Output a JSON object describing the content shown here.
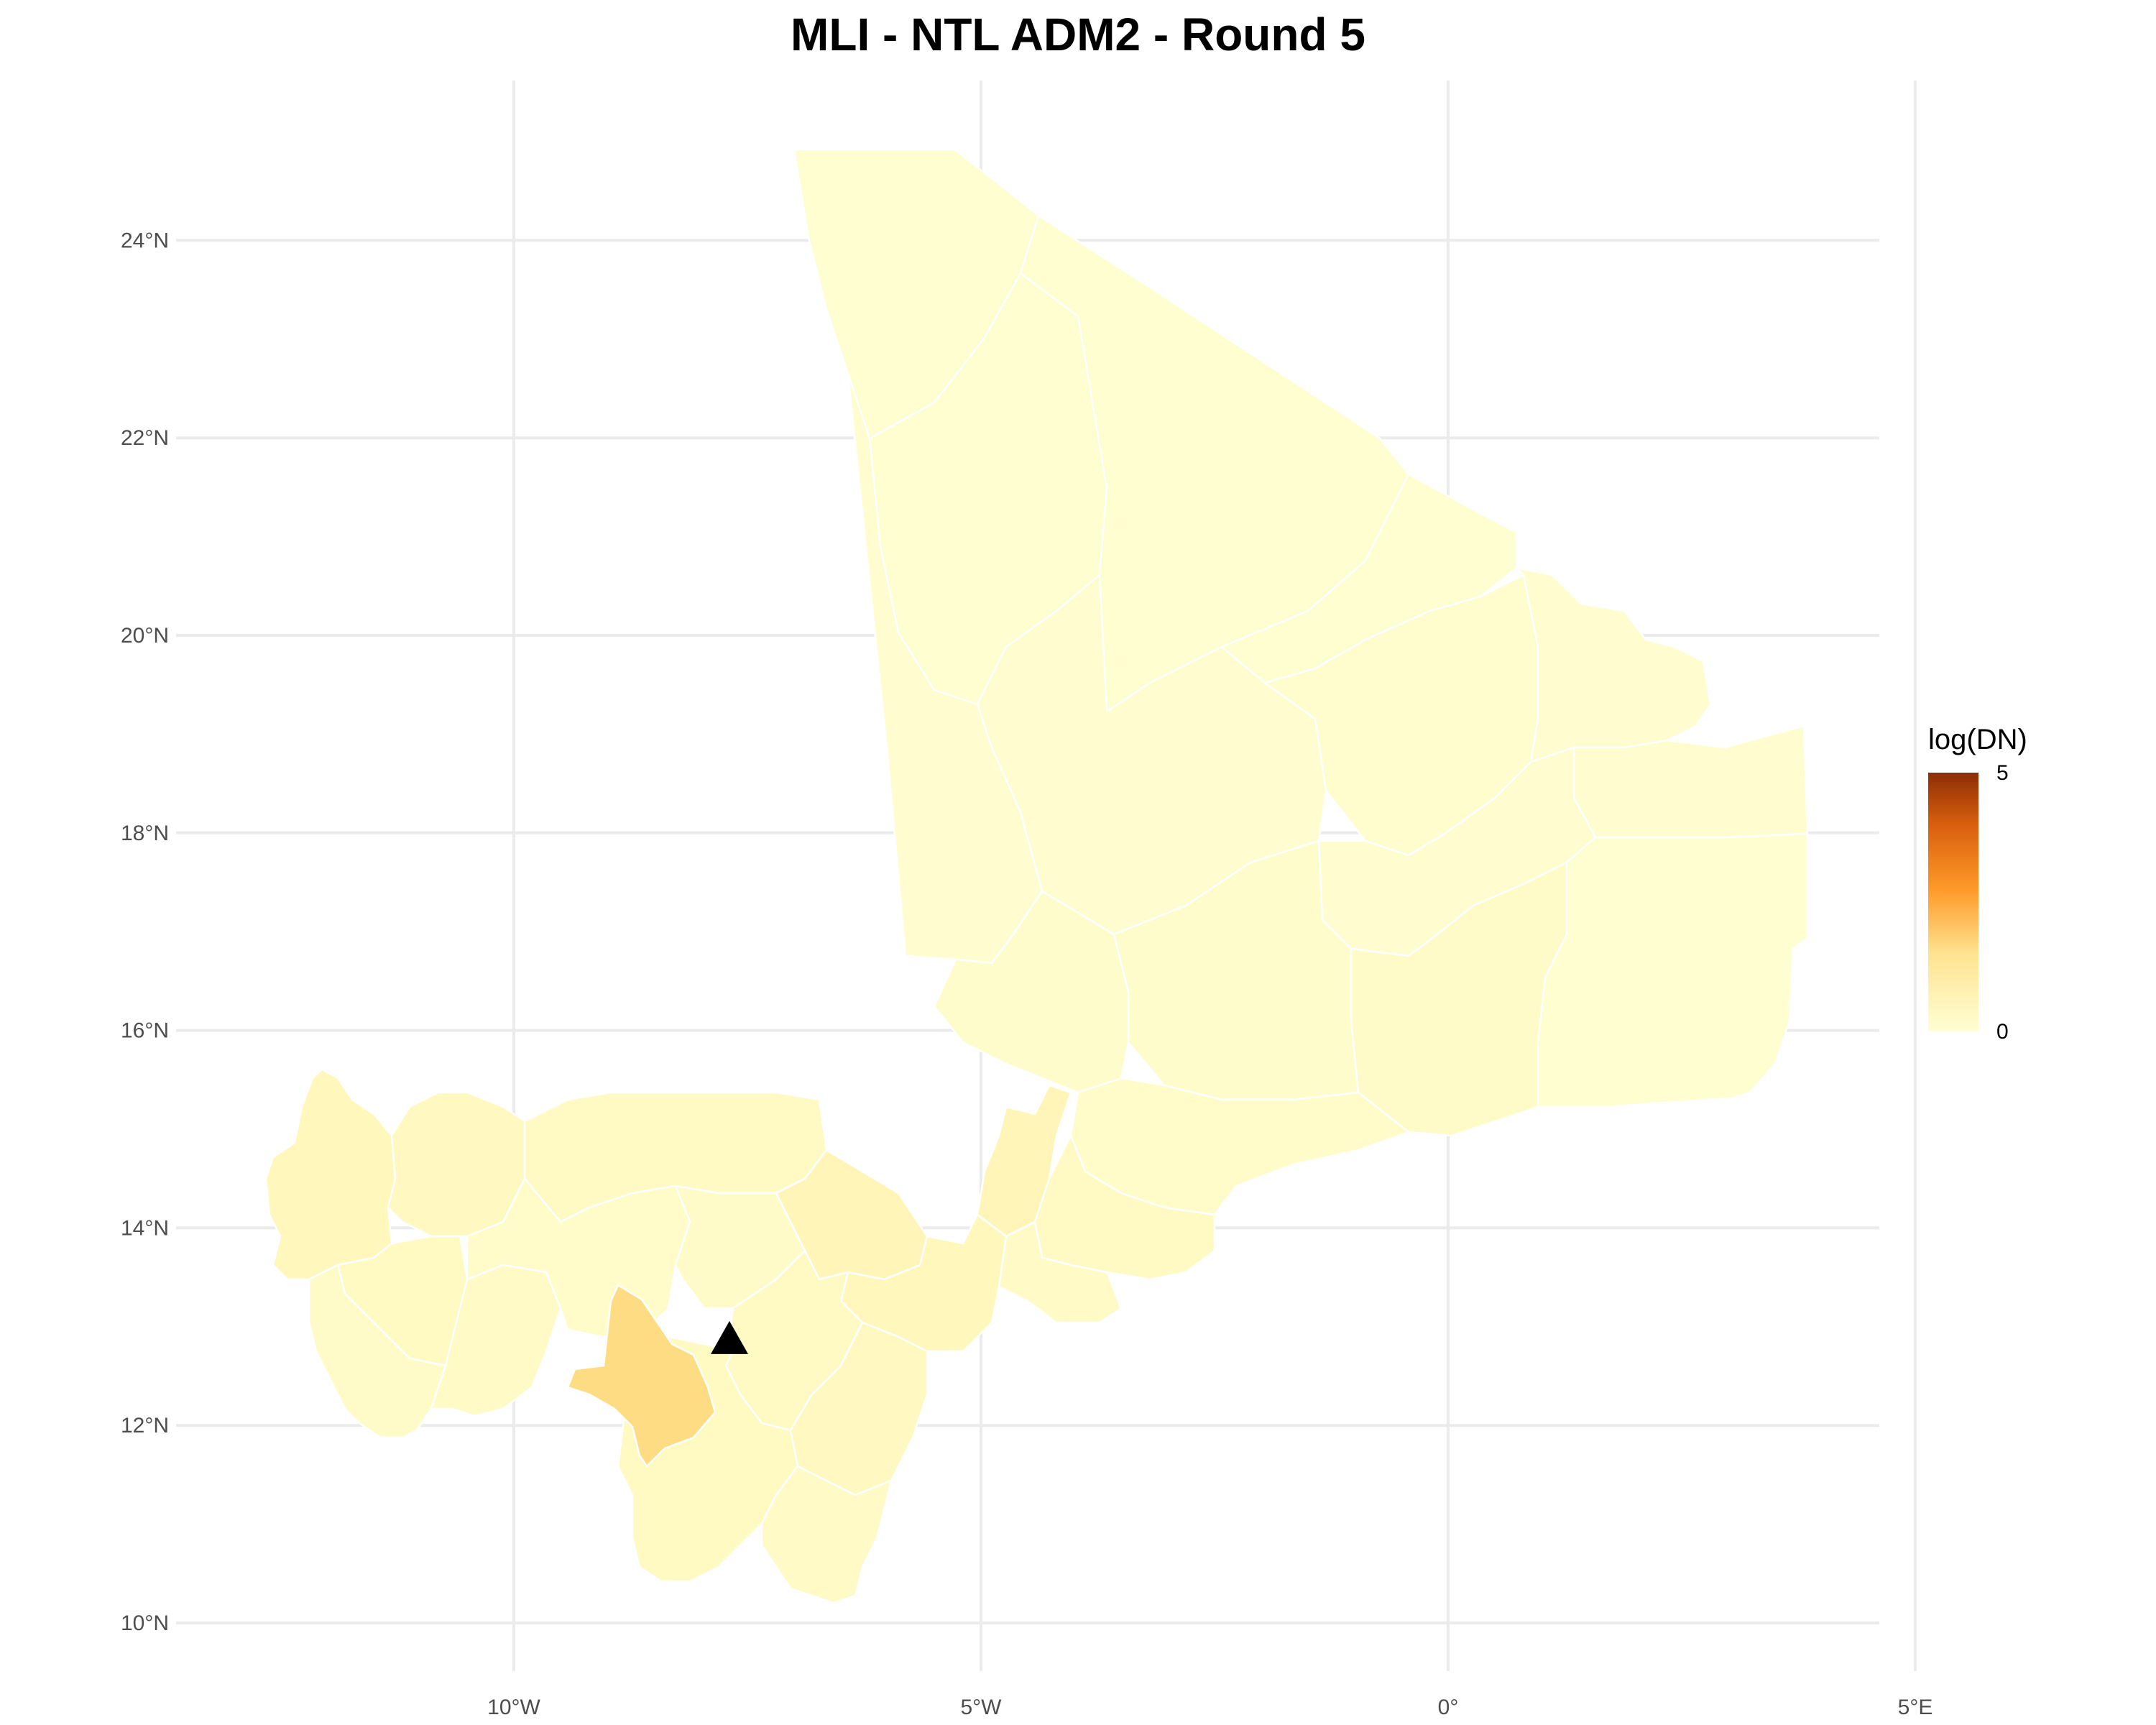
{
  "title": "MLI - NTL ADM2 - Round 5",
  "colors": {
    "background": "#ffffff",
    "grid": "#ebebeb",
    "region_border": "#ffffff",
    "low": "#ffffd4",
    "mid": "#fec44f",
    "high": "#8c2d04",
    "marker": "#000000"
  },
  "axes": {
    "x_ticks": [
      "10°W",
      "5°W",
      "0°",
      "5°E"
    ],
    "y_ticks": [
      "24°N",
      "22°N",
      "20°N",
      "18°N",
      "16°N",
      "14°N",
      "12°N",
      "10°N"
    ]
  },
  "legend": {
    "title": "log(DN)",
    "max_label": "5",
    "min_label": "0",
    "range": [
      0,
      5
    ]
  },
  "chart_data": {
    "type": "choropleth",
    "region_level": "ADM2",
    "variable": "log(DN)",
    "scale_range": [
      0,
      5
    ],
    "x_range_deg": [
      -12.5,
      5
    ],
    "y_range_deg": [
      9.6,
      25.2
    ],
    "marker": {
      "shape": "triangle",
      "lon": -8.0,
      "lat": 12.65
    },
    "regions": [
      {
        "id": "north-1",
        "value": 0.05
      },
      {
        "id": "north-2",
        "value": 0.05
      },
      {
        "id": "north-3",
        "value": 0.05
      },
      {
        "id": "north-4",
        "value": 0.06
      },
      {
        "id": "north-5",
        "value": 0.06
      },
      {
        "id": "north-6",
        "value": 0.05
      },
      {
        "id": "north-7",
        "value": 0.07
      },
      {
        "id": "north-8",
        "value": 0.06
      },
      {
        "id": "east-1",
        "value": 0.06
      },
      {
        "id": "east-2",
        "value": 0.06
      },
      {
        "id": "east-3",
        "value": 0.05
      },
      {
        "id": "center-1",
        "value": 0.1
      },
      {
        "id": "center-2",
        "value": 0.15
      },
      {
        "id": "center-3",
        "value": 0.1
      },
      {
        "id": "center-4",
        "value": 0.12
      },
      {
        "id": "center-5",
        "value": 0.35
      },
      {
        "id": "center-6",
        "value": 0.2
      },
      {
        "id": "center-7",
        "value": 0.18
      },
      {
        "id": "west-1",
        "value": 0.3
      },
      {
        "id": "west-2",
        "value": 0.25
      },
      {
        "id": "west-3",
        "value": 0.22
      },
      {
        "id": "west-4",
        "value": 0.15
      },
      {
        "id": "west-5",
        "value": 0.18
      },
      {
        "id": "west-6",
        "value": 0.2
      },
      {
        "id": "west-7",
        "value": 0.12
      },
      {
        "id": "south-1",
        "value": 0.35
      },
      {
        "id": "south-2",
        "value": 0.15
      },
      {
        "id": "south-3",
        "value": 0.3
      },
      {
        "id": "south-4",
        "value": 0.2
      },
      {
        "id": "south-5",
        "value": 0.25
      },
      {
        "id": "south-6",
        "value": 0.22
      },
      {
        "id": "south-7",
        "value": 0.18
      },
      {
        "id": "bamako",
        "value": 0.95
      }
    ]
  }
}
